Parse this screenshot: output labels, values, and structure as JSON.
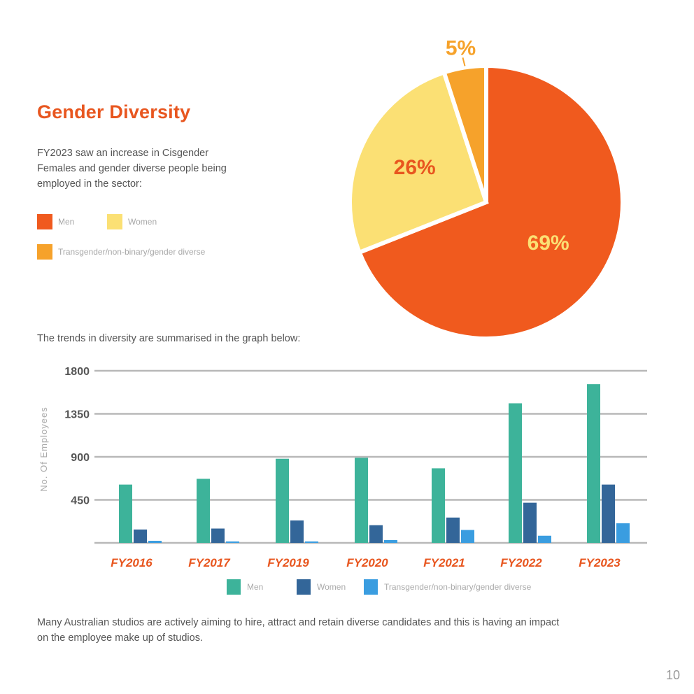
{
  "page": {
    "title": "Gender Diversity",
    "intro": "FY2023 saw an increase in Cisgender Females and gender diverse people being employed in the sector:",
    "trend_text": "The trends in diversity are summarised in the graph below:",
    "footer_text": "Many Australian studios are actively aiming to hire, attract and retain diverse candidates and this is having an impact on the employee make up of studios.",
    "page_number": "10"
  },
  "colors": {
    "accent": "#e8561f",
    "men_pie": "#f05a1e",
    "women_pie": "#fbe074",
    "diverse_pie": "#f6a22b",
    "men_bar": "#3db39a",
    "women_bar": "#336699",
    "diverse_bar": "#3a9de0"
  },
  "pie_legend": {
    "men": "Men",
    "women": "Women",
    "diverse": "Transgender/non-binary/gender diverse"
  },
  "chart_data": [
    {
      "type": "pie",
      "title": "Gender Diversity",
      "labels": [
        "Men",
        "Women",
        "Transgender/non-binary/gender diverse"
      ],
      "values": [
        69,
        26,
        5
      ],
      "value_labels": [
        "69%",
        "26%",
        "5%"
      ]
    },
    {
      "type": "bar",
      "categories": [
        "FY2016",
        "FY2017",
        "FY2019",
        "FY2020",
        "FY2021",
        "FY2022",
        "FY2023"
      ],
      "series": [
        {
          "name": "Men",
          "values": [
            610,
            670,
            880,
            890,
            780,
            1460,
            1660
          ]
        },
        {
          "name": "Women",
          "values": [
            140,
            150,
            235,
            185,
            265,
            420,
            610
          ]
        },
        {
          "name": "Transgender/non-binary/gender diverse",
          "values": [
            0,
            15,
            15,
            30,
            135,
            75,
            205
          ]
        }
      ],
      "ylabel": "No. Of Employees",
      "yticks": [
        "450",
        "900",
        "1350",
        "1800"
      ],
      "ylim": [
        0,
        1800
      ],
      "legend": [
        "Men",
        "Women",
        "Transgender/non-binary/gender diverse"
      ]
    }
  ]
}
